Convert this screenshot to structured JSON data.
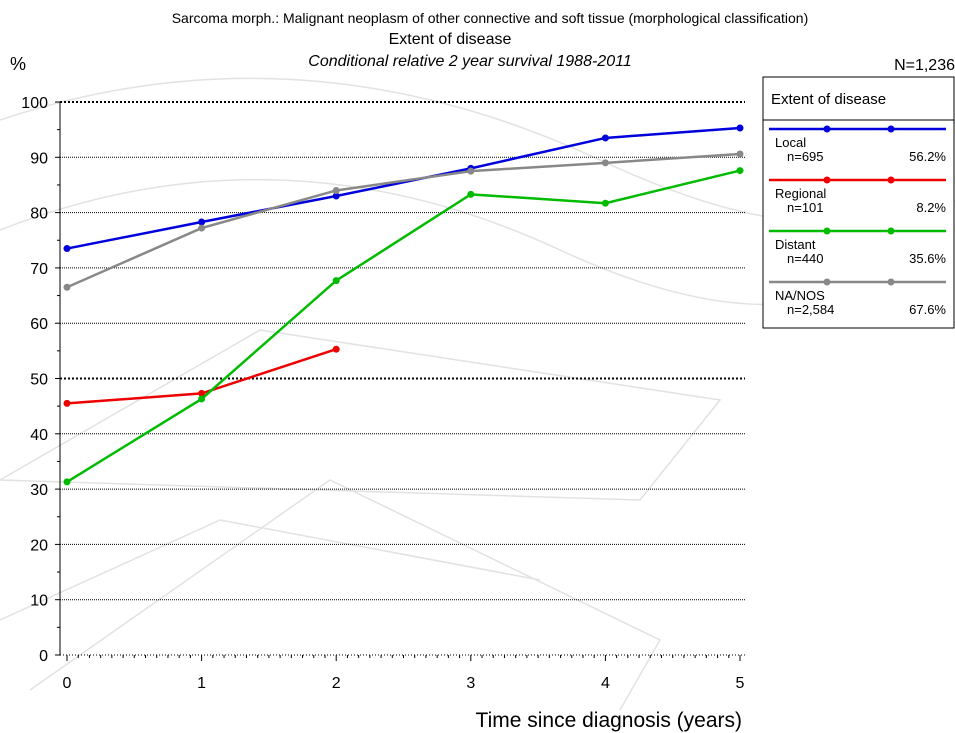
{
  "chart_data": {
    "type": "line",
    "title": "Sarcoma morph.: Malignant neoplasm of other connective and soft tissue (morphological classification)",
    "subtitle": "Extent of disease",
    "subtitle2": "Conditional relative 2 year survival 1988-2011",
    "ylabel": "%",
    "xlabel": "Time since diagnosis (years)",
    "total_n": "N=1,236",
    "x_ticks": [
      0,
      1,
      2,
      3,
      4,
      5
    ],
    "y_ticks": [
      0,
      10,
      20,
      30,
      40,
      50,
      60,
      70,
      80,
      90,
      100
    ],
    "xlim": [
      0,
      5
    ],
    "ylim": [
      0,
      100
    ],
    "legend_title": "Extent of disease",
    "legend_position": "right",
    "series": [
      {
        "name": "Local",
        "n": "n=695",
        "pct": "56.2%",
        "color": "#0000dd",
        "x": [
          0,
          1,
          2,
          3,
          4,
          5
        ],
        "y": [
          73.5,
          78.3,
          83.0,
          88.0,
          93.5,
          95.3
        ]
      },
      {
        "name": "Regional",
        "n": "n=101",
        "pct": "8.2%",
        "color": "#ee0000",
        "x": [
          0,
          1,
          2
        ],
        "y": [
          45.5,
          47.3,
          55.3
        ]
      },
      {
        "name": "Distant",
        "n": "n=440",
        "pct": "35.6%",
        "color": "#00bb00",
        "x": [
          0,
          1,
          2,
          3,
          4,
          5
        ],
        "y": [
          31.3,
          46.3,
          67.7,
          83.3,
          81.7,
          87.6
        ]
      },
      {
        "name": "NA/NOS",
        "n": "n=2,584",
        "pct": "67.6%",
        "color": "#888888",
        "x": [
          0,
          1,
          2,
          3,
          4,
          5
        ],
        "y": [
          66.5,
          77.2,
          84.0,
          87.5,
          89.0,
          90.6
        ]
      }
    ]
  }
}
